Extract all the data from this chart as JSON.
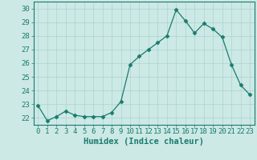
{
  "x": [
    0,
    1,
    2,
    3,
    4,
    5,
    6,
    7,
    8,
    9,
    10,
    11,
    12,
    13,
    14,
    15,
    16,
    17,
    18,
    19,
    20,
    21,
    22,
    23
  ],
  "y": [
    22.9,
    21.8,
    22.1,
    22.5,
    22.2,
    22.1,
    22.1,
    22.1,
    22.4,
    23.2,
    25.9,
    26.5,
    27.0,
    27.5,
    28.0,
    29.9,
    29.1,
    28.2,
    28.9,
    28.5,
    27.9,
    25.9,
    24.4,
    23.7
  ],
  "line_color": "#1a7a6e",
  "marker": "D",
  "marker_size": 2.5,
  "bg_color": "#cce9e5",
  "grid_color": "#aad4cf",
  "xlabel": "Humidex (Indice chaleur)",
  "xlim": [
    -0.5,
    23.5
  ],
  "ylim": [
    21.5,
    30.5
  ],
  "yticks": [
    22,
    23,
    24,
    25,
    26,
    27,
    28,
    29,
    30
  ],
  "xticks": [
    0,
    1,
    2,
    3,
    4,
    5,
    6,
    7,
    8,
    9,
    10,
    11,
    12,
    13,
    14,
    15,
    16,
    17,
    18,
    19,
    20,
    21,
    22,
    23
  ],
  "tick_color": "#1a7a6e",
  "label_color": "#1a7a6e",
  "xlabel_fontsize": 7.5,
  "tick_fontsize": 6.5
}
